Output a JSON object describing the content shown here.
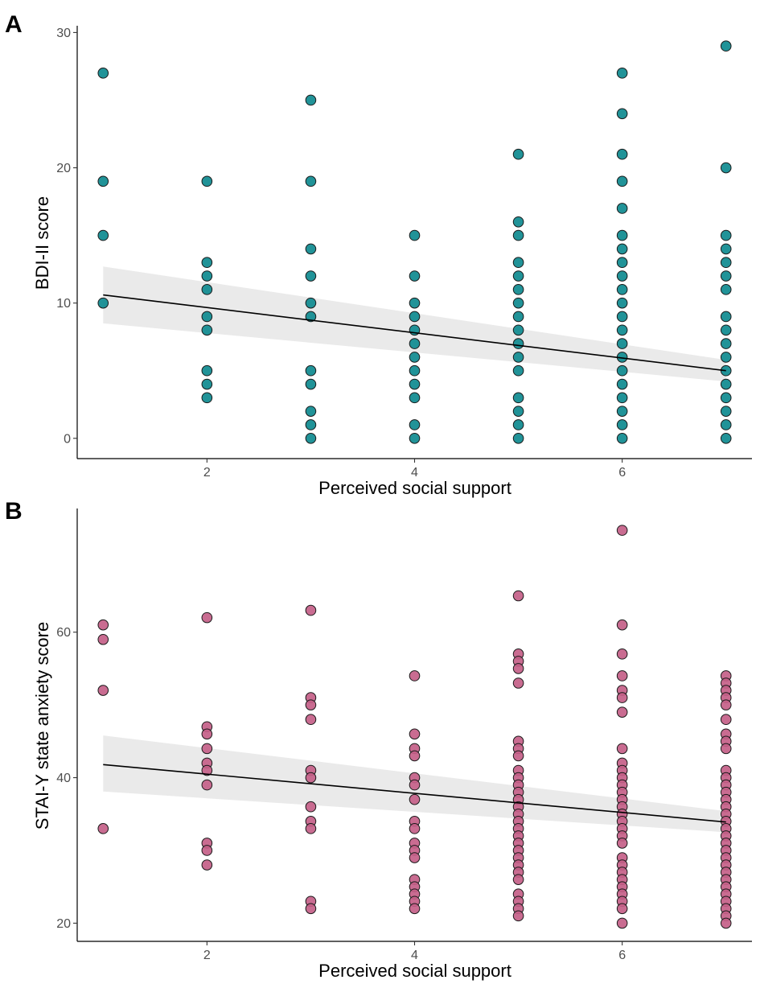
{
  "colors": {
    "panel_a_points": "#0e8a8f",
    "panel_b_points": "#c45f88",
    "ribbon": "#d9d9d9",
    "line": "#000000"
  },
  "chart_data": [
    {
      "type": "scatter",
      "panel_label": "A",
      "xlabel": "Perceived social support",
      "ylabel": "BDI-II score",
      "xlim": [
        0.75,
        7.25
      ],
      "ylim": [
        -1.5,
        30.5
      ],
      "x_ticks": [
        2,
        4,
        6
      ],
      "y_ticks": [
        0,
        10,
        20,
        30
      ],
      "x_tick_labels": [
        "2",
        "4",
        "6"
      ],
      "y_tick_labels": [
        "0",
        "10",
        "20",
        "30"
      ],
      "points": {
        "1": [
          27,
          19,
          15,
          10
        ],
        "2": [
          19,
          13,
          12,
          11,
          9,
          8,
          5,
          4,
          3
        ],
        "3": [
          25,
          19,
          14,
          12,
          10,
          9,
          5,
          4,
          2,
          1,
          0
        ],
        "4": [
          15,
          12,
          10,
          9,
          8,
          7,
          6,
          5,
          4,
          3,
          1,
          0
        ],
        "5": [
          21,
          16,
          15,
          13,
          12,
          11,
          10,
          9,
          8,
          7,
          6,
          5,
          3,
          2,
          1,
          0
        ],
        "6": [
          27,
          24,
          21,
          19,
          17,
          15,
          14,
          13,
          12,
          11,
          10,
          9,
          8,
          7,
          6,
          5,
          4,
          3,
          2,
          1,
          0
        ],
        "7": [
          29,
          20,
          15,
          14,
          13,
          12,
          11,
          9,
          8,
          7,
          6,
          5,
          4,
          3,
          2,
          1,
          0
        ]
      },
      "fit_line": {
        "x": [
          1,
          7
        ],
        "y": [
          10.6,
          5.0
        ]
      },
      "ci_band": {
        "x": [
          1,
          7
        ],
        "lower": [
          8.5,
          4.2
        ],
        "upper": [
          12.7,
          5.8
        ]
      }
    },
    {
      "type": "scatter",
      "panel_label": "B",
      "xlabel": "Perceived social support",
      "ylabel": "STAI-Y state anxiety score",
      "xlim": [
        0.75,
        7.25
      ],
      "ylim": [
        17.5,
        77
      ],
      "x_ticks": [
        2,
        4,
        6
      ],
      "y_ticks": [
        20,
        40,
        60
      ],
      "x_tick_labels": [
        "2",
        "4",
        "6"
      ],
      "y_tick_labels": [
        "20",
        "40",
        "60"
      ],
      "points": {
        "1": [
          61,
          59,
          52,
          33
        ],
        "2": [
          62,
          47,
          46,
          44,
          42,
          41,
          39,
          31,
          30,
          28
        ],
        "3": [
          63,
          51,
          50,
          48,
          41,
          40,
          36,
          34,
          33,
          23,
          22
        ],
        "4": [
          54,
          46,
          44,
          43,
          40,
          39,
          37,
          34,
          33,
          31,
          30,
          29,
          26,
          25,
          24,
          23,
          22
        ],
        "5": [
          65,
          57,
          56,
          55,
          53,
          45,
          44,
          43,
          41,
          40,
          39,
          38,
          37,
          36,
          35,
          34,
          33,
          32,
          31,
          30,
          29,
          28,
          27,
          26,
          24,
          23,
          22,
          21
        ],
        "6": [
          74,
          61,
          57,
          54,
          52,
          51,
          49,
          44,
          42,
          41,
          40,
          39,
          38,
          37,
          36,
          35,
          34,
          33,
          32,
          31,
          29,
          28,
          27,
          26,
          25,
          24,
          23,
          22,
          20
        ],
        "7": [
          54,
          53,
          52,
          51,
          50,
          48,
          46,
          45,
          44,
          41,
          40,
          39,
          38,
          37,
          36,
          35,
          34,
          33,
          32,
          31,
          30,
          29,
          28,
          27,
          26,
          25,
          24,
          23,
          22,
          21,
          20
        ]
      },
      "fit_line": {
        "x": [
          1,
          7
        ],
        "y": [
          41.8,
          33.9
        ]
      },
      "ci_band": {
        "x": [
          1,
          7
        ],
        "lower": [
          38.1,
          32.5
        ],
        "upper": [
          45.8,
          35.4
        ]
      }
    }
  ]
}
